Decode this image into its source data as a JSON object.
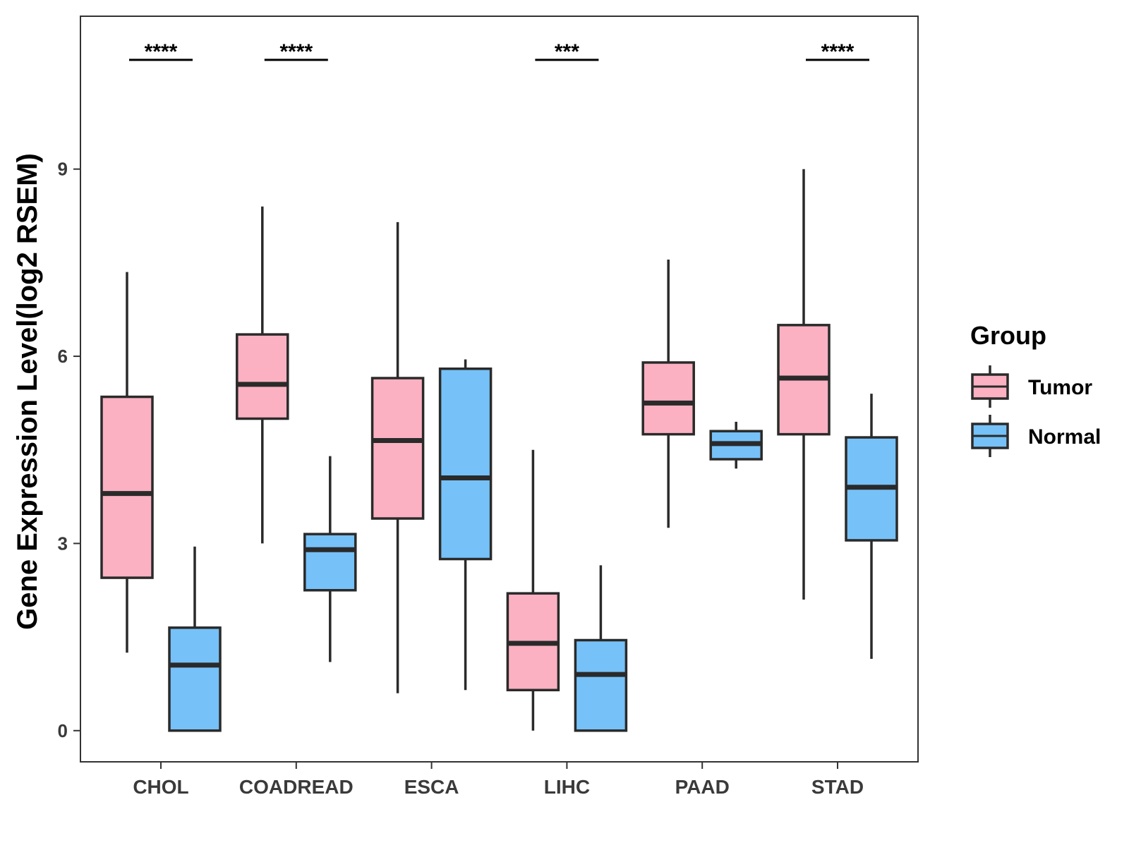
{
  "chart_data": {
    "type": "box",
    "title": "",
    "xlabel": "",
    "ylabel": "Gene Expression Level(log2 RSEM)",
    "ylim": [
      -0.5,
      11.45
    ],
    "yticks": [
      0,
      3,
      6,
      9
    ],
    "grid": false,
    "categories": [
      "CHOL",
      "COADREAD",
      "ESCA",
      "LIHC",
      "PAAD",
      "STAD"
    ],
    "legend": {
      "title": "Group",
      "position": "right",
      "entries": [
        {
          "name": "Tumor",
          "color": "#FBB1C2"
        },
        {
          "name": "Normal",
          "color": "#76C1F8"
        }
      ]
    },
    "series": [
      {
        "name": "Tumor",
        "color": "#FBB1C2",
        "boxes": [
          {
            "category": "CHOL",
            "min": 1.25,
            "q1": 2.45,
            "median": 3.8,
            "q3": 5.35,
            "max": 7.35
          },
          {
            "category": "COADREAD",
            "min": 3.0,
            "q1": 5.0,
            "median": 5.55,
            "q3": 6.35,
            "max": 8.4
          },
          {
            "category": "ESCA",
            "min": 0.6,
            "q1": 3.4,
            "median": 4.65,
            "q3": 5.65,
            "max": 8.15
          },
          {
            "category": "LIHC",
            "min": 0.0,
            "q1": 0.65,
            "median": 1.4,
            "q3": 2.2,
            "max": 4.5
          },
          {
            "category": "PAAD",
            "min": 3.25,
            "q1": 4.75,
            "median": 5.25,
            "q3": 5.9,
            "max": 7.55
          },
          {
            "category": "STAD",
            "min": 2.1,
            "q1": 4.75,
            "median": 5.65,
            "q3": 6.5,
            "max": 9.0
          }
        ]
      },
      {
        "name": "Normal",
        "color": "#76C1F8",
        "boxes": [
          {
            "category": "CHOL",
            "min": 0.0,
            "q1": 0.0,
            "median": 1.05,
            "q3": 1.65,
            "max": 2.95
          },
          {
            "category": "COADREAD",
            "min": 1.1,
            "q1": 2.25,
            "median": 2.9,
            "q3": 3.15,
            "max": 4.4
          },
          {
            "category": "ESCA",
            "min": 0.65,
            "q1": 2.75,
            "median": 4.05,
            "q3": 5.8,
            "max": 5.95
          },
          {
            "category": "LIHC",
            "min": 0.0,
            "q1": 0.0,
            "median": 0.9,
            "q3": 1.45,
            "max": 2.65
          },
          {
            "category": "PAAD",
            "min": 4.2,
            "q1": 4.35,
            "median": 4.6,
            "q3": 4.8,
            "max": 4.95
          },
          {
            "category": "STAD",
            "min": 1.15,
            "q1": 3.05,
            "median": 3.9,
            "q3": 4.7,
            "max": 5.4
          }
        ]
      }
    ],
    "annotations": [
      {
        "category": "CHOL",
        "label": "****",
        "y": 10.75
      },
      {
        "category": "COADREAD",
        "label": "****",
        "y": 10.75
      },
      {
        "category": "LIHC",
        "label": "***",
        "y": 10.75
      },
      {
        "category": "STAD",
        "label": "****",
        "y": 10.75
      }
    ]
  }
}
